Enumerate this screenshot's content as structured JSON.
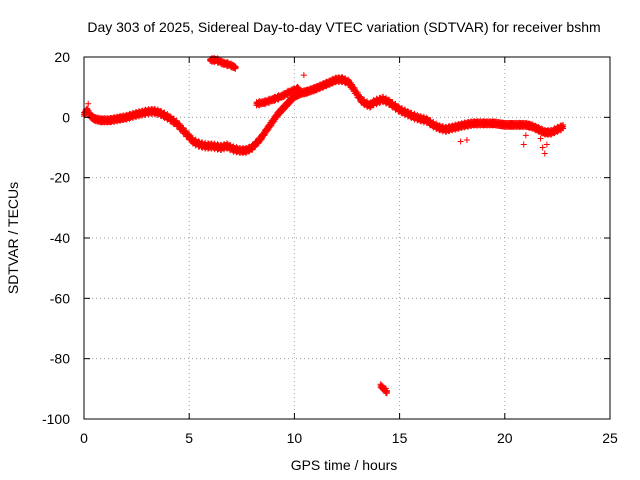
{
  "chart_data": {
    "type": "scatter",
    "title": "Day 303 of 2025, Sidereal Day-to-day VTEC variation (SDTVAR) for receiver bshm",
    "xlabel": "GPS time / hours",
    "ylabel": "SDTVAR / TECUs",
    "xlim": [
      0,
      25
    ],
    "ylim": [
      -100,
      20
    ],
    "xticks": [
      0,
      5,
      10,
      15,
      20,
      25
    ],
    "yticks": [
      20,
      0,
      -20,
      -40,
      -60,
      -80,
      -100
    ],
    "xtick_labels": [
      "0",
      "5",
      "10",
      "15",
      "20",
      "25"
    ],
    "ytick_labels": [
      "20",
      "0",
      "-20",
      "-40",
      "-60",
      "-80",
      "-100"
    ],
    "grid": true,
    "marker": "+",
    "color": "#ff0000",
    "series": [
      {
        "name": "SDTVAR",
        "band_half_width": 1.2,
        "main_trace": {
          "x": [
            0.0,
            0.15,
            0.3,
            0.5,
            0.8,
            1.2,
            1.6,
            2.0,
            2.5,
            3.0,
            3.3,
            3.6,
            4.0,
            4.4,
            4.8,
            5.2,
            5.5,
            5.8,
            6.1,
            6.5,
            6.8,
            7.1,
            7.4,
            7.7,
            8.0,
            8.4,
            8.8,
            9.2,
            9.6,
            10.0,
            10.3,
            10.6,
            11.0,
            11.5,
            12.0,
            12.3,
            12.6,
            12.8,
            13.0,
            13.2,
            13.4,
            13.6,
            13.8,
            14.0,
            14.2,
            14.5,
            14.8,
            15.0,
            15.3,
            15.6,
            16.0,
            16.3,
            16.6,
            16.9,
            17.2,
            17.5,
            17.8,
            18.1,
            18.5,
            19.0,
            19.5,
            20.0,
            20.5,
            21.0,
            21.3,
            21.6,
            21.9,
            22.2,
            22.5,
            22.8
          ],
          "y": [
            1.0,
            2.5,
            0.5,
            -0.5,
            -1.0,
            -1.0,
            -0.5,
            0.0,
            1.0,
            1.8,
            2.0,
            1.5,
            0.0,
            -2.0,
            -5.0,
            -8.0,
            -9.0,
            -9.5,
            -9.5,
            -10.0,
            -9.5,
            -10.5,
            -11.0,
            -11.0,
            -10.0,
            -7.0,
            -3.0,
            1.0,
            4.0,
            7.0,
            8.0,
            8.5,
            9.5,
            11.0,
            12.5,
            12.5,
            11.5,
            9.5,
            7.5,
            5.5,
            4.5,
            4.0,
            5.0,
            5.5,
            6.0,
            5.0,
            3.5,
            2.5,
            1.5,
            0.5,
            -0.5,
            -1.0,
            -2.5,
            -3.5,
            -4.0,
            -3.5,
            -3.0,
            -2.5,
            -2.0,
            -2.0,
            -2.0,
            -2.5,
            -2.5,
            -2.5,
            -3.0,
            -4.0,
            -5.0,
            -5.0,
            -4.0,
            -3.0
          ]
        },
        "arcs": [
          {
            "x": [
              6.0,
              6.3,
              6.6,
              6.9,
              7.2
            ],
            "y": [
              19.0,
              19.0,
              18.0,
              17.5,
              16.5
            ]
          },
          {
            "x": [
              8.2,
              8.6,
              9.0,
              9.4,
              9.8,
              10.2
            ],
            "y": [
              4.5,
              5.0,
              6.0,
              7.0,
              8.5,
              9.5
            ]
          },
          {
            "x": [
              14.1,
              14.25,
              14.4
            ],
            "y": [
              -89.0,
              -90.0,
              -91.0
            ]
          }
        ],
        "scatter_noise": [
          {
            "x": [
              10.45,
              0.2,
              17.9,
              18.2,
              20.9,
              21.0,
              21.8,
              21.9,
              22.0,
              21.7
            ],
            "y": [
              14.0,
              4.5,
              -8.0,
              -7.5,
              -9.0,
              -6.0,
              -10.0,
              -12.0,
              -9.0,
              -7.0
            ]
          }
        ]
      }
    ]
  }
}
